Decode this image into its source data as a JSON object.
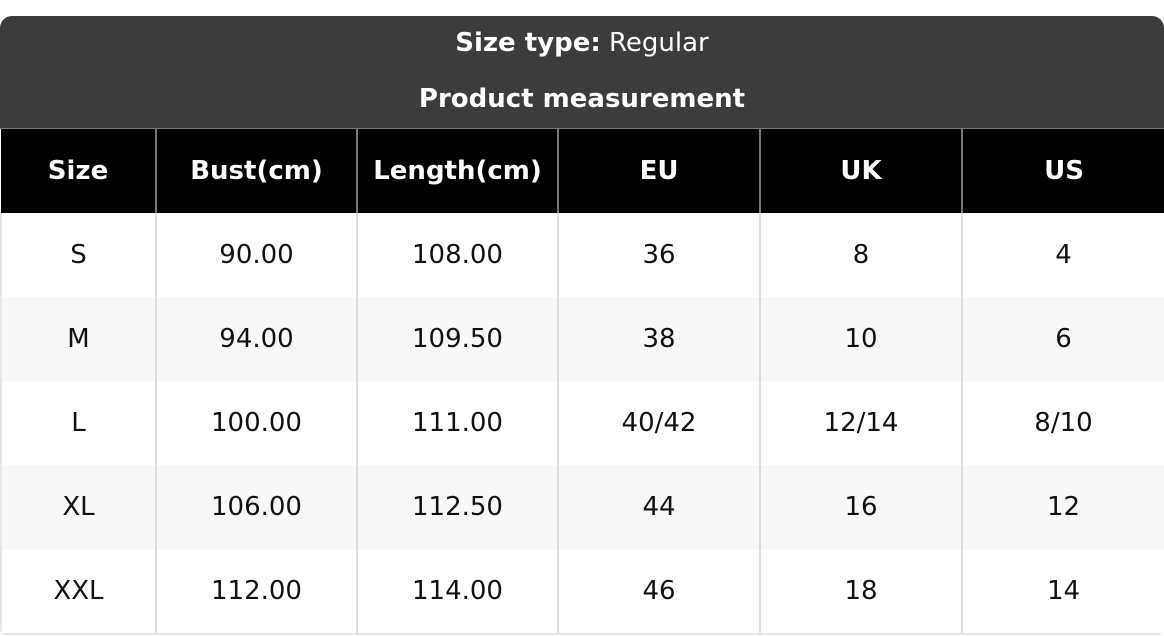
{
  "caption": {
    "size_type_label": "Size type:",
    "size_type_value": "Regular",
    "subtitle": "Product measurement"
  },
  "table": {
    "headers": [
      "Size",
      "Bust(cm)",
      "Length(cm)",
      "EU",
      "UK",
      "US"
    ],
    "rows": [
      [
        "S",
        "90.00",
        "108.00",
        "36",
        "8",
        "4"
      ],
      [
        "M",
        "94.00",
        "109.50",
        "38",
        "10",
        "6"
      ],
      [
        "L",
        "100.00",
        "111.00",
        "40/42",
        "12/14",
        "8/10"
      ],
      [
        "XL",
        "106.00",
        "112.50",
        "44",
        "16",
        "12"
      ],
      [
        "XXL",
        "112.00",
        "114.00",
        "46",
        "18",
        "14"
      ]
    ]
  }
}
